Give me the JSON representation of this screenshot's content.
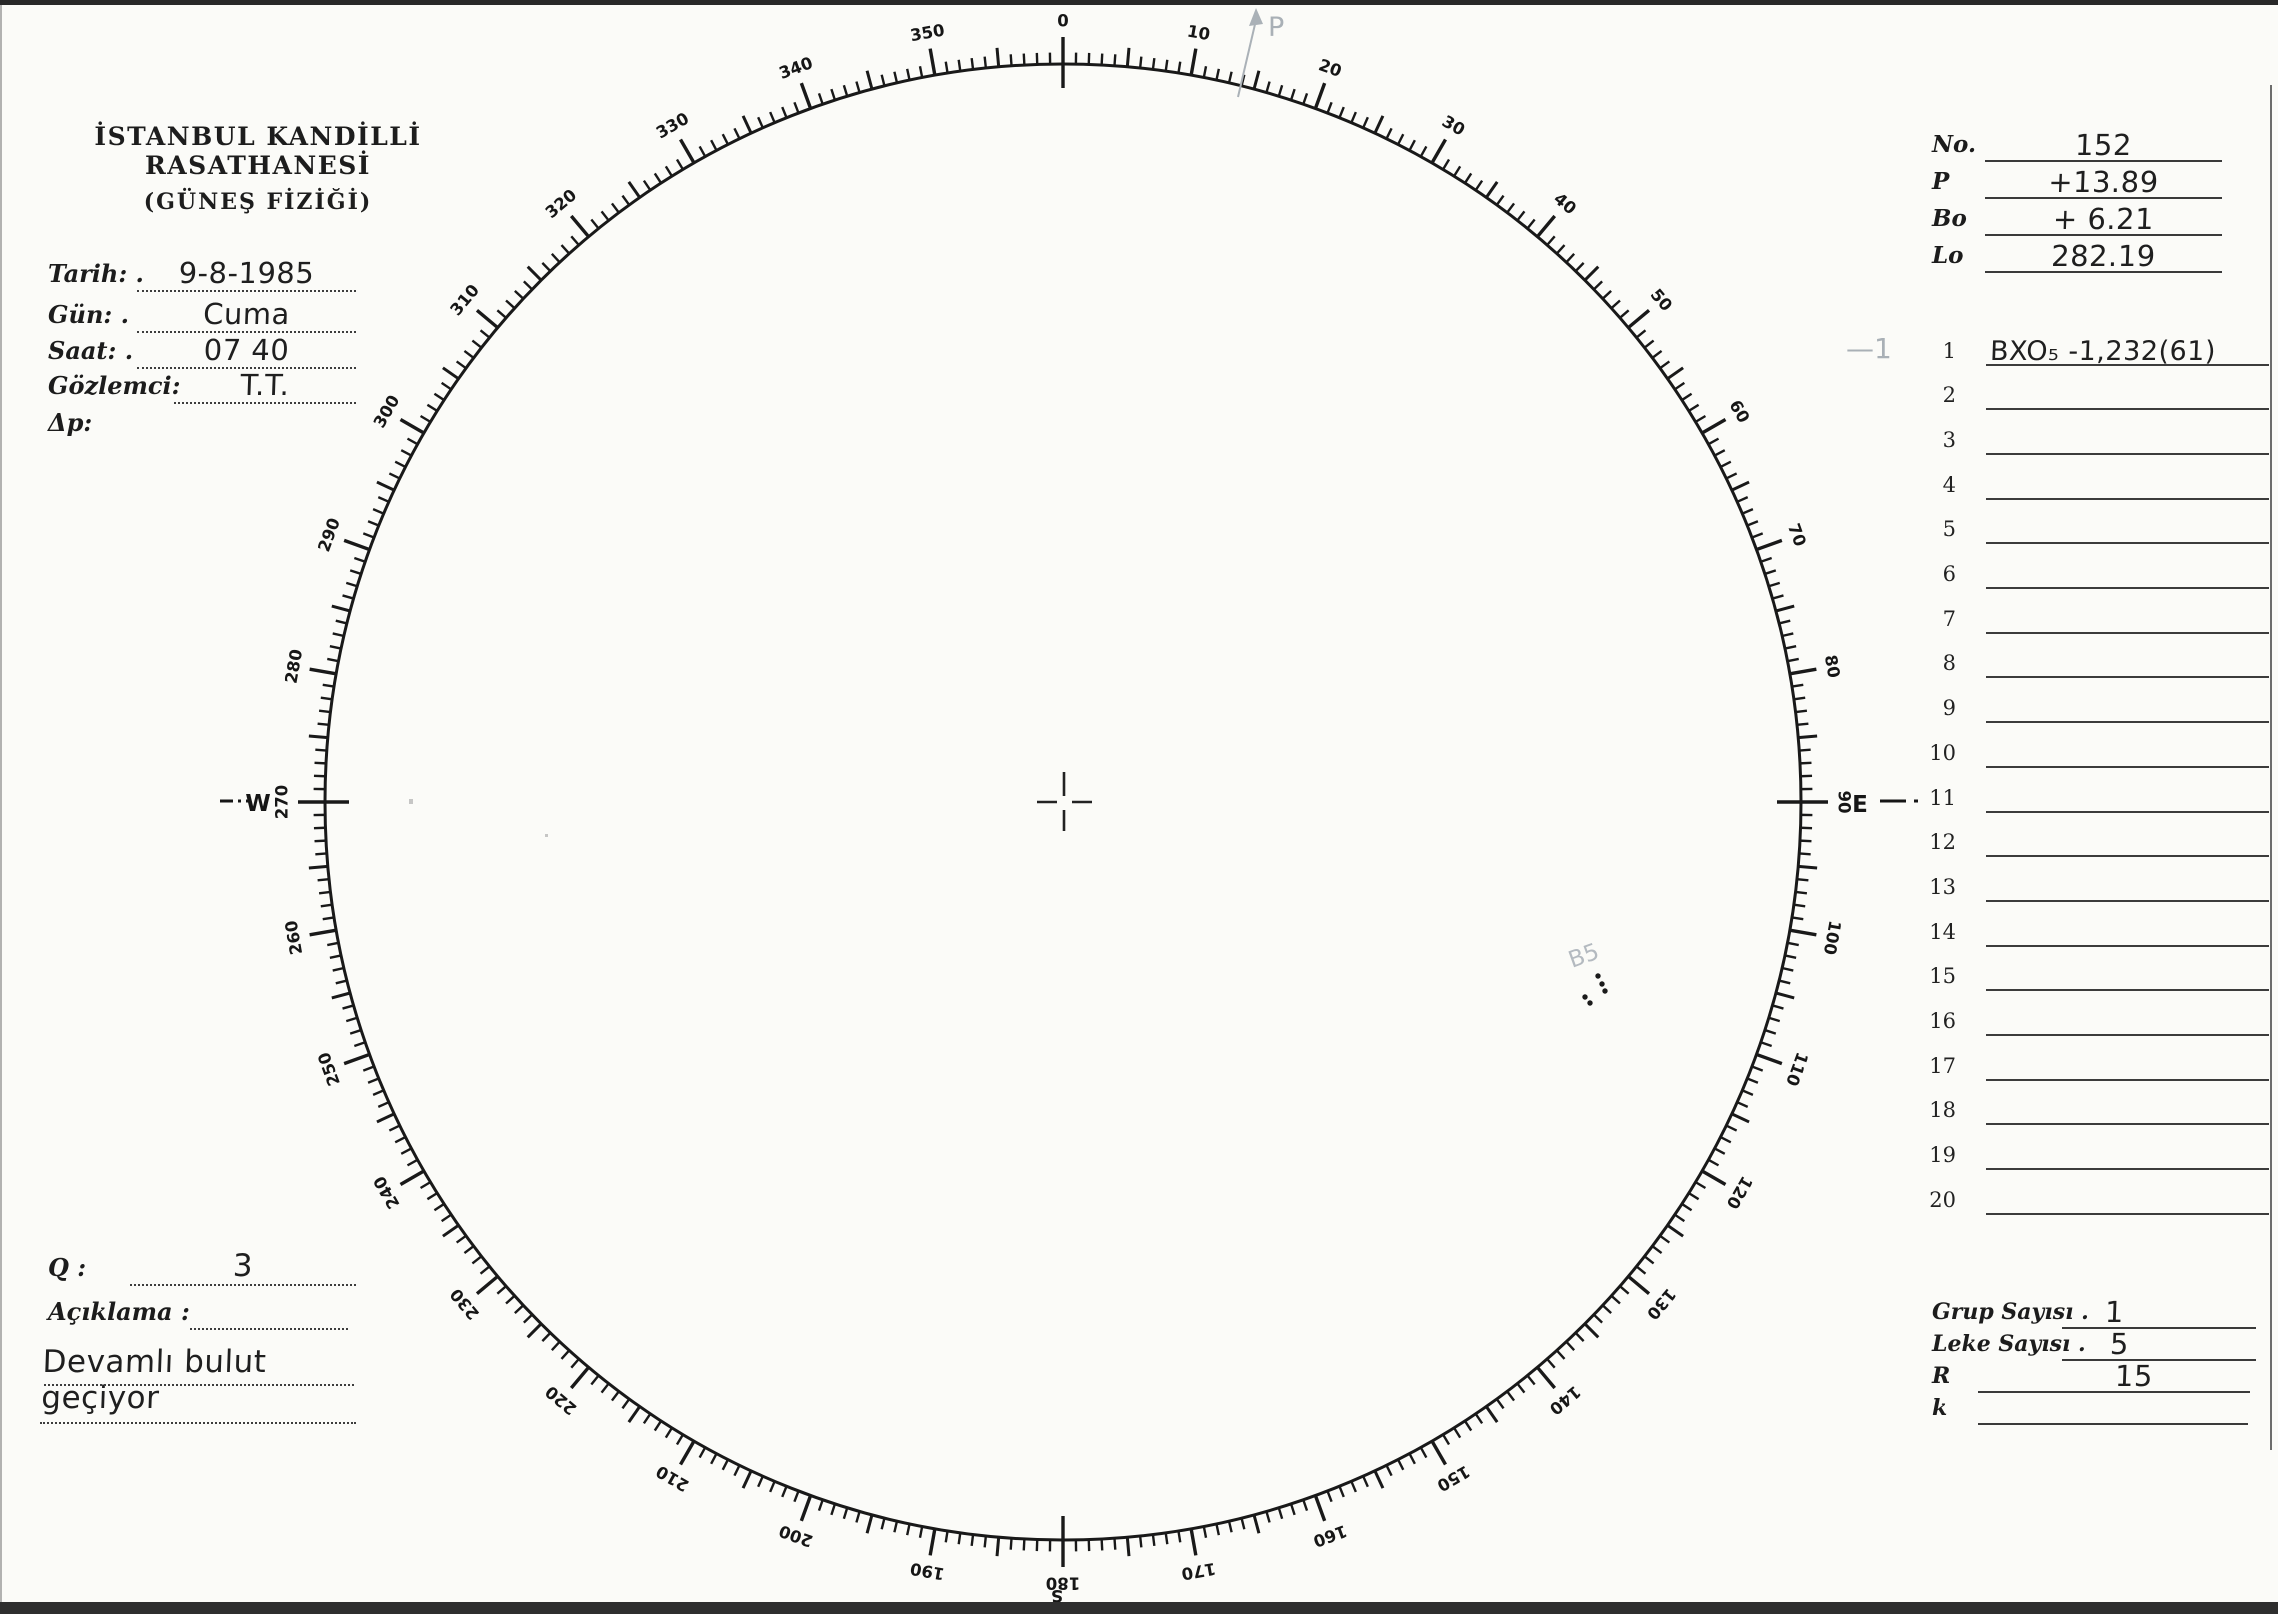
{
  "header": {
    "title_line1": "İSTANBUL KANDİLLİ RASATHANESİ",
    "title_line2": "(GÜNEŞ FİZİĞİ)"
  },
  "observation_fields": [
    {
      "label": "Tarih: .",
      "value": "9-8-1985"
    },
    {
      "label": "Gün: .",
      "value": "Cuma"
    },
    {
      "label": "Saat: .",
      "value": "07 40"
    },
    {
      "label": "Gözlemci:",
      "value": "T.T."
    },
    {
      "label": "Δp:",
      "value": ""
    }
  ],
  "ephemeris_fields": [
    {
      "label": "No.",
      "value": "152"
    },
    {
      "label": "P",
      "value": "+13.89"
    },
    {
      "label": "Bo",
      "value": "+ 6.21"
    },
    {
      "label": "Lo",
      "value": "282.19"
    }
  ],
  "region_list": {
    "pencil_annotation": "—1",
    "rows": [
      {
        "num": "1",
        "value": "BXO₅ -1,232(61)"
      },
      {
        "num": "2",
        "value": ""
      },
      {
        "num": "3",
        "value": ""
      },
      {
        "num": "4",
        "value": ""
      },
      {
        "num": "5",
        "value": ""
      },
      {
        "num": "6",
        "value": ""
      },
      {
        "num": "7",
        "value": ""
      },
      {
        "num": "8",
        "value": ""
      },
      {
        "num": "9",
        "value": ""
      },
      {
        "num": "10",
        "value": ""
      },
      {
        "num": "11",
        "value": ""
      },
      {
        "num": "12",
        "value": ""
      },
      {
        "num": "13",
        "value": ""
      },
      {
        "num": "14",
        "value": ""
      },
      {
        "num": "15",
        "value": ""
      },
      {
        "num": "16",
        "value": ""
      },
      {
        "num": "17",
        "value": ""
      },
      {
        "num": "18",
        "value": ""
      },
      {
        "num": "19",
        "value": ""
      },
      {
        "num": "20",
        "value": ""
      }
    ]
  },
  "quality": {
    "label": "Q :",
    "value": "3"
  },
  "remarks": {
    "label": "Açıklama :",
    "value": "Devamlı bulut geçiyor"
  },
  "summary_fields": [
    {
      "label": "Grup Sayısı .",
      "value": "1"
    },
    {
      "label": "Leke Sayısı .",
      "value": "5"
    },
    {
      "label": "R",
      "value": "15"
    },
    {
      "label": "k",
      "value": ""
    }
  ],
  "dial": {
    "degree_labels": [
      "0",
      "10",
      "20",
      "30",
      "40",
      "50",
      "60",
      "70",
      "80",
      "90",
      "100",
      "110",
      "120",
      "130",
      "140",
      "150",
      "160",
      "170",
      "180",
      "190",
      "200",
      "210",
      "220",
      "230",
      "240",
      "250",
      "260",
      "270",
      "280",
      "290",
      "300",
      "310",
      "320",
      "330",
      "340",
      "350"
    ],
    "cardinal_east": "E",
    "cardinal_west": "W",
    "cardinal_south": "S",
    "pencil_p_label": "P",
    "pencil_b5_label": "B5"
  },
  "sunspots": {
    "count": 5,
    "positions": [
      [
        1598,
        976
      ],
      [
        1602,
        984
      ],
      [
        1605,
        991
      ],
      [
        1585,
        997
      ],
      [
        1590,
        1003
      ]
    ]
  }
}
